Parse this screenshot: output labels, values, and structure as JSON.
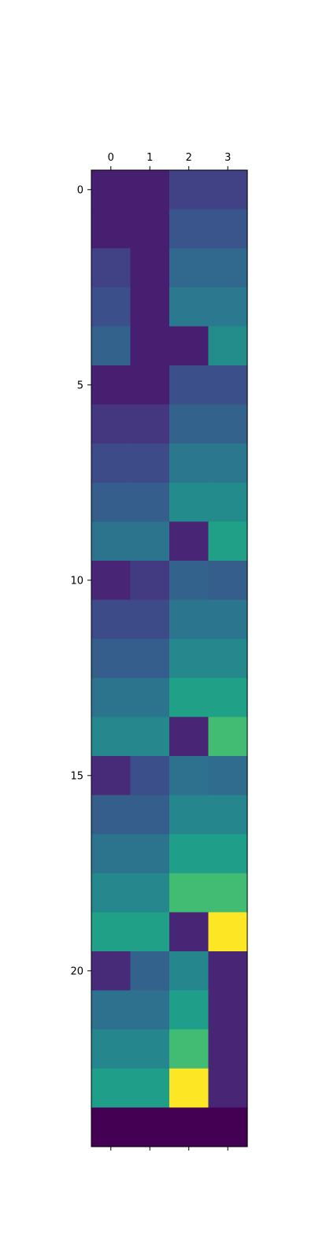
{
  "chart_data": {
    "type": "heatmap",
    "title": "",
    "xlabel": "",
    "ylabel": "",
    "colormap": "viridis",
    "x_ticks": [
      "0",
      "1",
      "2",
      "3"
    ],
    "x_tick_position": "top",
    "y_ticks": [
      "0",
      "5",
      "10",
      "15",
      "20"
    ],
    "y_tick_values": [
      0,
      5,
      10,
      15,
      20
    ],
    "n_rows": 25,
    "n_cols": 4,
    "color_range": [
      0,
      1
    ],
    "values": [
      [
        0.1,
        0.1,
        0.22,
        0.22
      ],
      [
        0.1,
        0.1,
        0.3,
        0.3
      ],
      [
        0.22,
        0.1,
        0.38,
        0.38
      ],
      [
        0.28,
        0.1,
        0.46,
        0.46
      ],
      [
        0.36,
        0.1,
        0.1,
        0.55
      ],
      [
        0.1,
        0.1,
        0.28,
        0.28
      ],
      [
        0.18,
        0.18,
        0.36,
        0.36
      ],
      [
        0.26,
        0.26,
        0.45,
        0.45
      ],
      [
        0.34,
        0.34,
        0.54,
        0.54
      ],
      [
        0.43,
        0.43,
        0.12,
        0.64
      ],
      [
        0.12,
        0.2,
        0.36,
        0.34
      ],
      [
        0.26,
        0.26,
        0.44,
        0.44
      ],
      [
        0.34,
        0.34,
        0.53,
        0.53
      ],
      [
        0.43,
        0.43,
        0.64,
        0.64
      ],
      [
        0.53,
        0.53,
        0.12,
        0.78
      ],
      [
        0.14,
        0.28,
        0.42,
        0.4
      ],
      [
        0.34,
        0.34,
        0.52,
        0.52
      ],
      [
        0.43,
        0.43,
        0.63,
        0.63
      ],
      [
        0.53,
        0.53,
        0.78,
        0.78
      ],
      [
        0.64,
        0.64,
        0.12,
        1.0
      ],
      [
        0.14,
        0.36,
        0.52,
        0.12
      ],
      [
        0.42,
        0.42,
        0.63,
        0.12
      ],
      [
        0.52,
        0.52,
        0.78,
        0.12
      ],
      [
        0.63,
        0.63,
        1.0,
        0.12
      ],
      [
        0.0,
        0.0,
        0.0,
        0.0
      ]
    ]
  }
}
